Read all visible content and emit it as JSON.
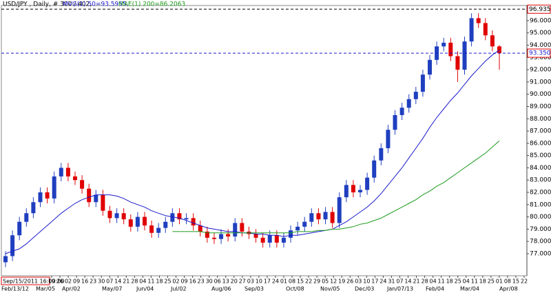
{
  "chart_data": {
    "type": "candlestick",
    "title": "USD/JPY , Daily, # 300 / 402,",
    "cursor_time": "Sep/15/2011 16:00:00",
    "up_color": "#1f3fbf",
    "down_color": "#e00000",
    "ohlc": {
      "open": [
        76.3,
        76.8,
        78.5,
        79.6,
        80.3,
        81.2,
        82.0,
        81.5,
        83.3,
        84.0,
        83.3,
        83.0,
        82.3,
        81.2,
        81.8,
        80.5,
        79.9,
        80.3,
        79.8,
        79.2,
        80.0,
        79.3,
        78.7,
        79.1,
        79.6,
        80.3,
        79.8,
        79.9,
        79.3,
        78.8,
        78.3,
        78.2,
        78.6,
        78.4,
        79.5,
        78.8,
        78.6,
        78.3,
        77.9,
        78.5,
        77.9,
        78.3,
        78.9,
        79.2,
        79.6,
        80.3,
        79.8,
        80.4,
        79.5,
        81.6,
        82.6,
        82.0,
        82.2,
        83.2,
        84.6,
        85.6,
        87.1,
        88.3,
        88.9,
        89.6,
        90.2,
        91.6,
        92.8,
        93.9,
        94.2,
        93.1,
        92.0,
        94.3,
        96.2,
        95.8,
        94.8,
        93.9
      ],
      "high": [
        77.2,
        78.9,
        80.0,
        80.7,
        81.6,
        82.4,
        82.4,
        83.7,
        84.4,
        84.4,
        83.7,
        83.4,
        82.7,
        82.2,
        82.2,
        80.9,
        80.7,
        80.7,
        80.2,
        80.4,
        80.4,
        79.7,
        79.5,
        80.0,
        80.7,
        80.7,
        80.3,
        80.3,
        79.7,
        79.2,
        78.7,
        79.0,
        79.0,
        79.9,
        79.9,
        79.2,
        79.0,
        78.7,
        78.9,
        78.9,
        78.7,
        79.3,
        79.6,
        80.0,
        80.7,
        80.7,
        80.8,
        80.8,
        82.0,
        83.0,
        83.0,
        82.6,
        83.6,
        85.0,
        86.0,
        87.5,
        88.7,
        89.3,
        90.0,
        90.6,
        92.0,
        93.2,
        94.3,
        94.6,
        94.6,
        93.5,
        94.7,
        96.6,
        96.6,
        96.2,
        95.2,
        94.0
      ],
      "low": [
        75.9,
        76.4,
        78.1,
        79.2,
        79.9,
        80.8,
        81.1,
        81.1,
        82.9,
        82.9,
        82.6,
        81.9,
        80.8,
        80.8,
        80.1,
        79.5,
        79.5,
        79.4,
        78.8,
        78.8,
        78.9,
        78.3,
        78.3,
        78.7,
        79.2,
        79.4,
        79.4,
        78.9,
        78.4,
        77.9,
        77.8,
        77.8,
        78.0,
        78.0,
        78.4,
        78.2,
        77.9,
        77.5,
        77.5,
        77.5,
        77.5,
        77.9,
        78.5,
        78.8,
        79.2,
        79.4,
        79.4,
        79.1,
        79.1,
        81.2,
        81.6,
        81.6,
        81.8,
        82.8,
        84.2,
        85.2,
        86.7,
        87.9,
        88.5,
        89.2,
        89.8,
        91.2,
        92.4,
        93.5,
        92.7,
        91.0,
        91.6,
        93.9,
        95.4,
        94.4,
        93.5,
        92.0
      ],
      "close": [
        76.8,
        78.5,
        79.6,
        80.3,
        81.2,
        82.0,
        81.5,
        83.3,
        84.0,
        83.3,
        83.0,
        82.3,
        81.2,
        81.8,
        80.5,
        79.9,
        80.3,
        79.8,
        79.2,
        80.0,
        79.3,
        78.7,
        79.1,
        79.6,
        80.3,
        79.8,
        79.9,
        79.3,
        78.8,
        78.3,
        78.2,
        78.6,
        78.4,
        79.5,
        78.8,
        78.6,
        78.3,
        77.9,
        78.5,
        77.9,
        78.3,
        78.9,
        79.2,
        79.6,
        80.3,
        79.8,
        80.4,
        79.5,
        81.6,
        82.6,
        82.0,
        82.2,
        83.2,
        84.6,
        85.6,
        87.1,
        88.3,
        88.9,
        89.6,
        90.2,
        91.6,
        92.8,
        93.9,
        94.2,
        93.1,
        92.0,
        94.3,
        96.2,
        95.8,
        94.8,
        93.9,
        93.35
      ]
    },
    "series": [
      {
        "name": "MVG(1) 50=93.5955,",
        "color": "#1a1acc",
        "values": [
          77.0,
          77.2,
          77.4,
          77.8,
          78.3,
          78.8,
          79.3,
          79.8,
          80.3,
          80.7,
          81.1,
          81.4,
          81.6,
          81.8,
          81.8,
          81.8,
          81.7,
          81.5,
          81.2,
          81.0,
          80.8,
          80.5,
          80.3,
          80.1,
          80.0,
          79.9,
          79.7,
          79.5,
          79.3,
          79.1,
          79.0,
          78.9,
          78.8,
          78.8,
          78.7,
          78.7,
          78.6,
          78.6,
          78.5,
          78.5,
          78.4,
          78.5,
          78.5,
          78.6,
          78.7,
          78.8,
          78.9,
          79.0,
          79.3,
          79.6,
          80.0,
          80.4,
          80.8,
          81.3,
          81.9,
          82.6,
          83.3,
          84.0,
          84.8,
          85.6,
          86.4,
          87.3,
          88.1,
          88.8,
          89.5,
          90.1,
          90.8,
          91.5,
          92.1,
          92.7,
          93.2,
          93.6
        ]
      },
      {
        "name": "MAE(1) 200=86.2063",
        "color": "#1a9a1a",
        "values": [
          null,
          null,
          null,
          null,
          null,
          null,
          null,
          null,
          null,
          null,
          null,
          null,
          null,
          null,
          null,
          null,
          null,
          null,
          null,
          null,
          null,
          null,
          null,
          null,
          78.8,
          78.8,
          78.8,
          78.8,
          78.8,
          78.7,
          78.7,
          78.7,
          78.7,
          78.7,
          78.7,
          78.7,
          78.7,
          78.7,
          78.7,
          78.7,
          78.7,
          78.7,
          78.8,
          78.8,
          78.8,
          78.9,
          78.9,
          79.0,
          79.0,
          79.1,
          79.2,
          79.4,
          79.5,
          79.7,
          79.9,
          80.2,
          80.5,
          80.8,
          81.1,
          81.4,
          81.8,
          82.1,
          82.5,
          82.8,
          83.2,
          83.6,
          84.0,
          84.4,
          84.8,
          85.2,
          85.7,
          86.2
        ]
      }
    ],
    "markers": [
      {
        "value": 96.9354,
        "label": "96.9354",
        "color": "#000000"
      },
      {
        "value": 93.35,
        "label": "93.3500",
        "color": "#1a1acc"
      }
    ],
    "ylim": [
      75.2,
      97.12
    ],
    "yticks": [
      {
        "value": 77,
        "label": "77.0000"
      },
      {
        "value": 78,
        "label": "78.0000"
      },
      {
        "value": 79,
        "label": "79.0000"
      },
      {
        "value": 80,
        "label": "80.0000"
      },
      {
        "value": 81,
        "label": "81.0000"
      },
      {
        "value": 82,
        "label": "82.0000"
      },
      {
        "value": 83,
        "label": "83.0000"
      },
      {
        "value": 84,
        "label": "84.0000"
      },
      {
        "value": 85,
        "label": "85.0000"
      },
      {
        "value": 86,
        "label": "86.0000"
      },
      {
        "value": 87,
        "label": "87.0000"
      },
      {
        "value": 88,
        "label": "88.0000"
      },
      {
        "value": 89,
        "label": "89.0000"
      },
      {
        "value": 90,
        "label": "90.0000"
      },
      {
        "value": 91,
        "label": "91.0000"
      },
      {
        "value": 92,
        "label": "92.0000"
      },
      {
        "value": 93,
        "label": "93.0000"
      },
      {
        "value": 94,
        "label": "94.0000"
      },
      {
        "value": 95,
        "label": "95.0000"
      },
      {
        "value": 96,
        "label": "96.0000"
      }
    ],
    "week_labels": [
      "19",
      "26",
      "02",
      "09",
      "16",
      "23",
      "30",
      "07",
      "14",
      "21",
      "28",
      "04",
      "11",
      "18",
      "25",
      "02",
      "09",
      "16",
      "23",
      "30",
      "06",
      "13",
      "20",
      "27",
      "03",
      "10",
      "17",
      "24",
      "01",
      "08",
      "15",
      "22",
      "29",
      "05",
      "12",
      "19",
      "26",
      "03",
      "10",
      "17",
      "24",
      "31",
      "07",
      "14",
      "21",
      "28",
      "04",
      "11",
      "18",
      "25",
      "04",
      "11",
      "18",
      "25",
      "01",
      "08",
      "15",
      "22"
    ],
    "month_labels": [
      "Feb/13/12",
      "Mar/05",
      "Apr/02",
      "May/07",
      "Jun/04",
      "Jul/02",
      "Aug/06",
      "Sep/03",
      "Oct/08",
      "Nov/05",
      "Dec/03",
      "Jan/07/13",
      "Feb/04",
      "Mar/04",
      "Apr/08"
    ]
  }
}
